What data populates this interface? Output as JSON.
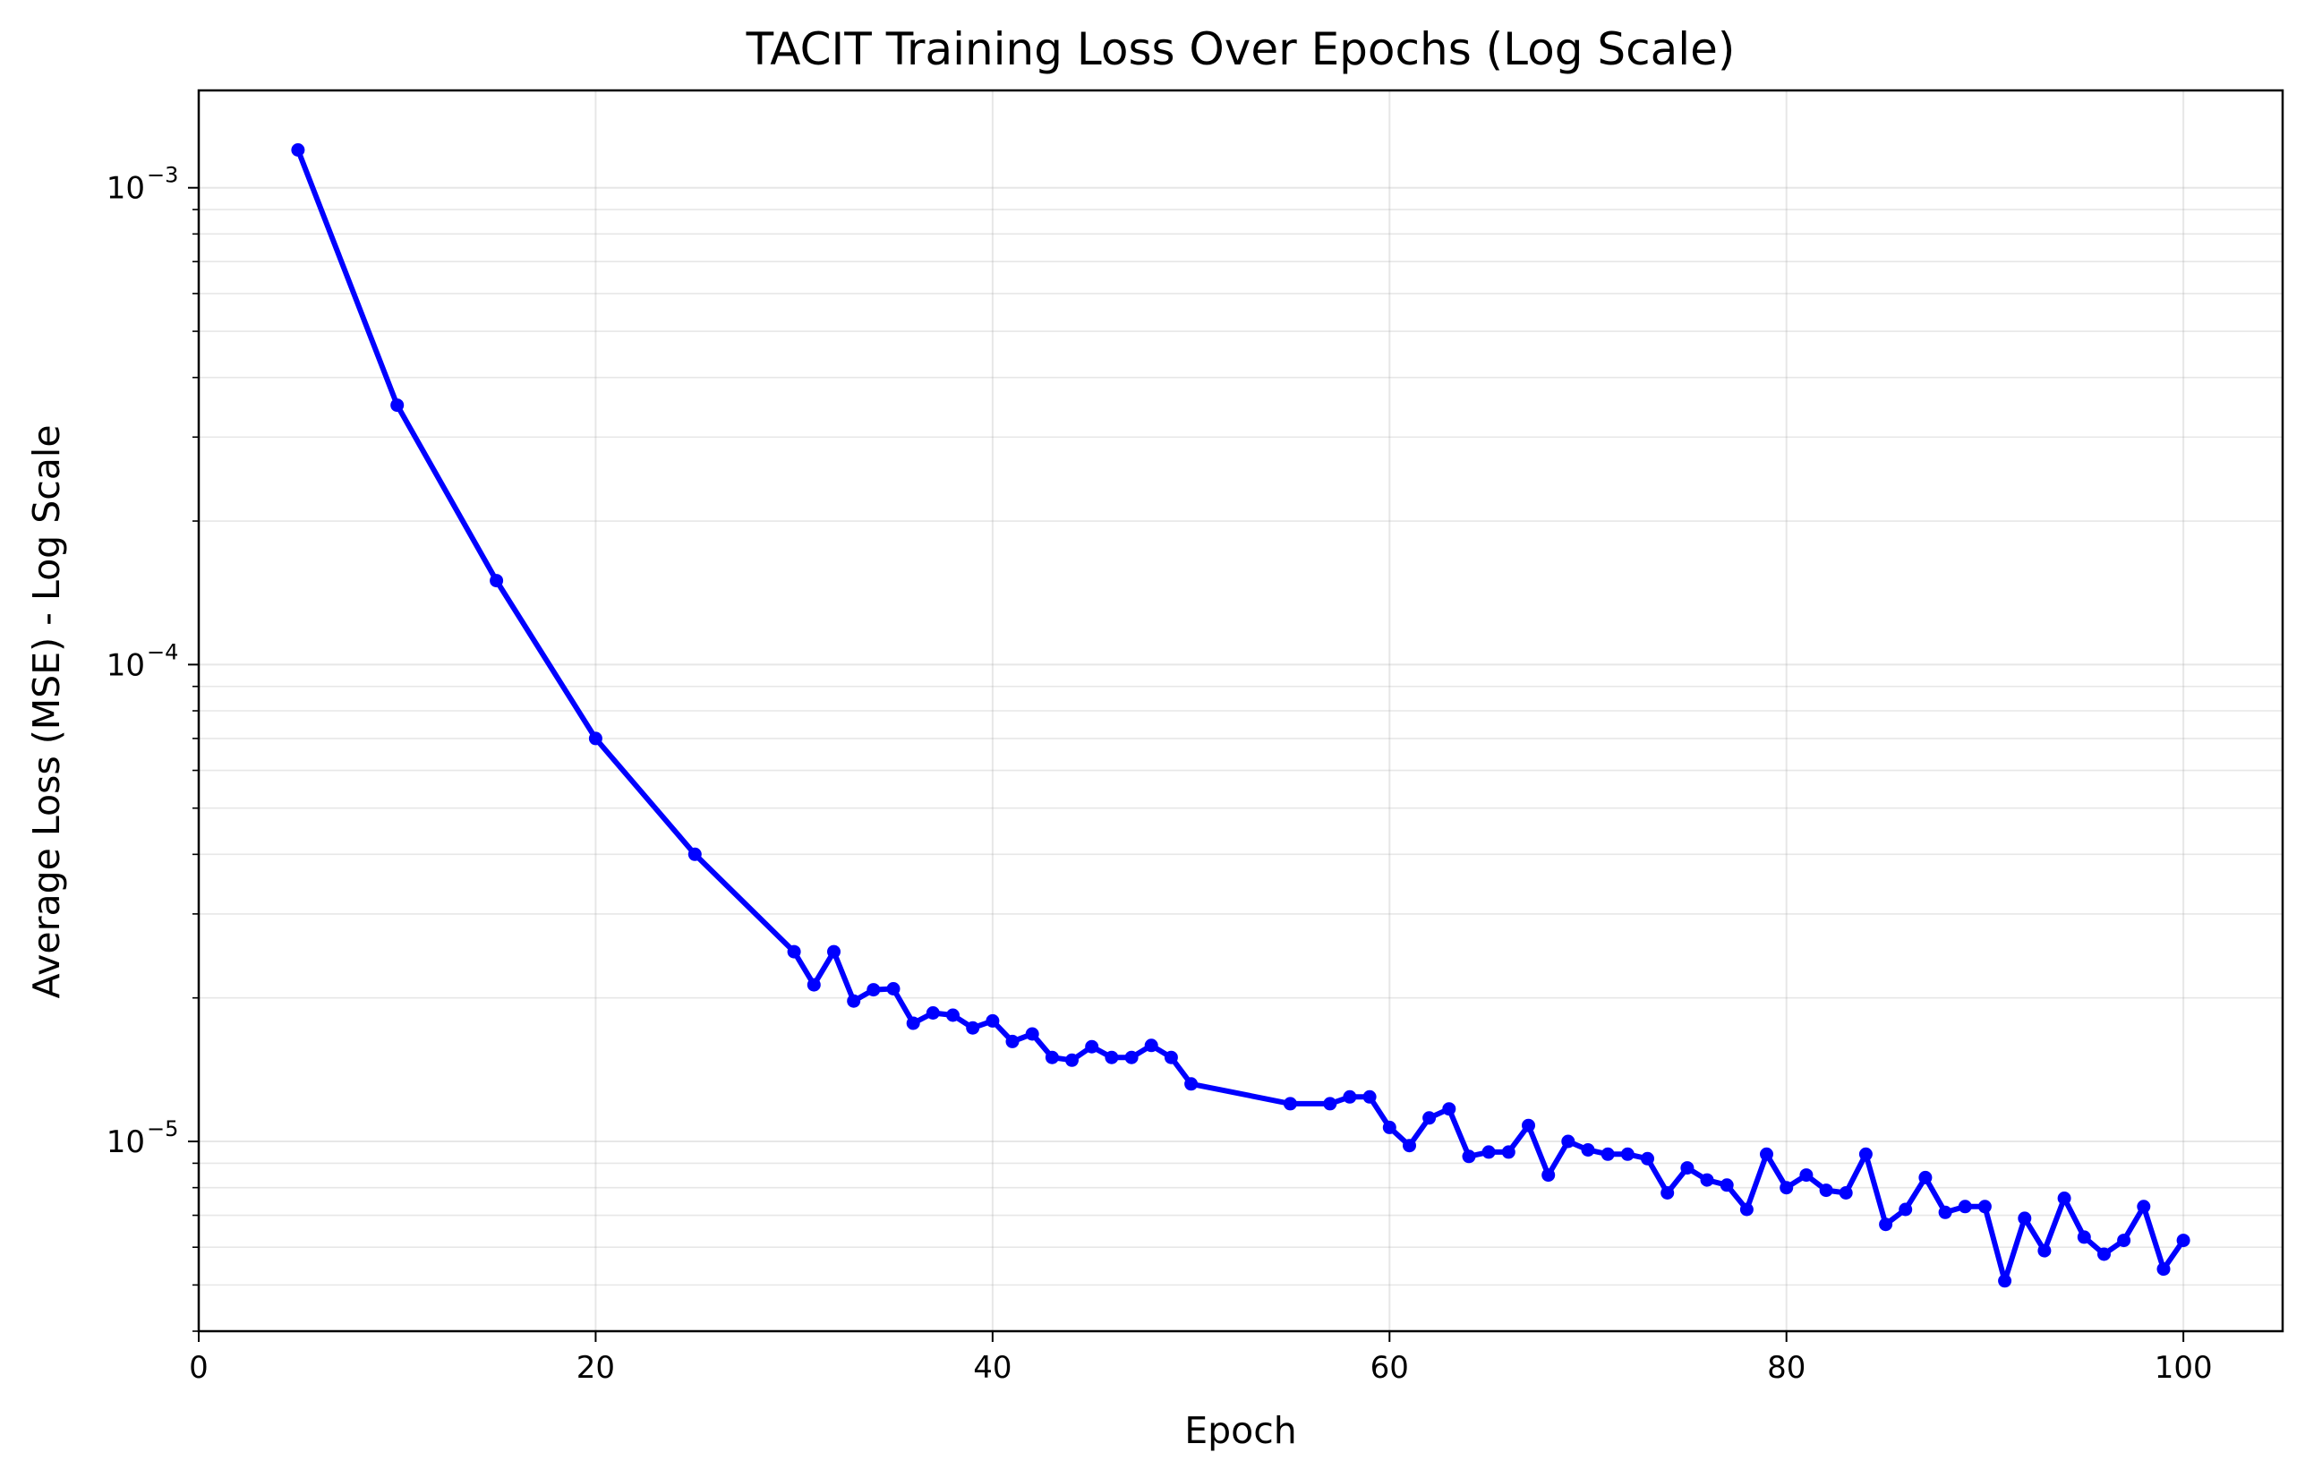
{
  "chart_data": {
    "type": "line",
    "title": "TACIT Training Loss Over Epochs (Log Scale)",
    "xlabel": "Epoch",
    "ylabel": "Average Loss (MSE) - Log Scale",
    "xlim": [
      0,
      105
    ],
    "ylim": [
      4e-06,
      0.0016
    ],
    "yscale": "log",
    "grid": true,
    "legend": "none",
    "x_ticks": [
      {
        "value": 0,
        "label": "0"
      },
      {
        "value": 20,
        "label": "20"
      },
      {
        "value": 40,
        "label": "40"
      },
      {
        "value": 60,
        "label": "60"
      },
      {
        "value": 80,
        "label": "80"
      },
      {
        "value": 100,
        "label": "100"
      }
    ],
    "y_ticks": [
      {
        "value": 1e-05,
        "base": "10",
        "exp": "−5"
      },
      {
        "value": 0.0001,
        "base": "10",
        "exp": "−4"
      },
      {
        "value": 0.001,
        "base": "10",
        "exp": "−3"
      }
    ],
    "series": [
      {
        "color": "#0000ff",
        "x": [
          5,
          10,
          15,
          20,
          25,
          30,
          31,
          32,
          33,
          34,
          35,
          36,
          37,
          38,
          39,
          40,
          41,
          42,
          43,
          44,
          45,
          46,
          47,
          48,
          49,
          50,
          55,
          57,
          58,
          59,
          60,
          61,
          62,
          63,
          64,
          65,
          66,
          67,
          68,
          69,
          70,
          71,
          72,
          73,
          74,
          75,
          76,
          77,
          78,
          79,
          80,
          81,
          82,
          83,
          84,
          85,
          86,
          87,
          88,
          89,
          90,
          91,
          92,
          93,
          94,
          95,
          96,
          97,
          98,
          99,
          100
        ],
        "y": [
          0.0012,
          0.00035,
          0.00015,
          7e-05,
          4e-05,
          2.5e-05,
          2.13e-05,
          2.5e-05,
          1.97e-05,
          2.08e-05,
          2.09e-05,
          1.77e-05,
          1.86e-05,
          1.84e-05,
          1.73e-05,
          1.79e-05,
          1.62e-05,
          1.68e-05,
          1.5e-05,
          1.48e-05,
          1.58e-05,
          1.5e-05,
          1.5e-05,
          1.59e-05,
          1.5e-05,
          1.32e-05,
          1.2e-05,
          1.2e-05,
          1.24e-05,
          1.24e-05,
          1.07e-05,
          9.8e-06,
          1.12e-05,
          1.17e-05,
          9.3e-06,
          9.5e-06,
          9.5e-06,
          1.08e-05,
          8.5e-06,
          1e-05,
          9.6e-06,
          9.4e-06,
          9.4e-06,
          9.2e-06,
          7.8e-06,
          8.8e-06,
          8.3e-06,
          8.1e-06,
          7.2e-06,
          9.4e-06,
          8e-06,
          8.5e-06,
          7.9e-06,
          7.8e-06,
          9.4e-06,
          6.7e-06,
          7.2e-06,
          8.4e-06,
          7.1e-06,
          7.3e-06,
          7.3e-06,
          5.1e-06,
          6.9e-06,
          5.9e-06,
          7.6e-06,
          6.3e-06,
          5.8e-06,
          6.2e-06,
          7.3e-06,
          5.4e-06,
          6.2e-06
        ]
      }
    ]
  }
}
